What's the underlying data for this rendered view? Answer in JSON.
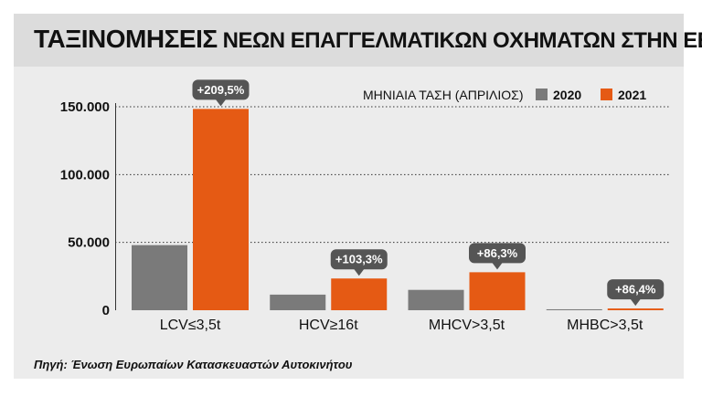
{
  "title": {
    "bold": "ΤΑΞΙΝΟΜΗΣΕΙΣ",
    "rest": "ΝΕΩΝ ΕΠΑΓΓΕΛΜΑΤΙΚΩΝ ΟΧΗΜΑΤΩΝ ΣΤΗΝ ΕΕ"
  },
  "legend": {
    "title": "ΜΗΝΙΑΙΑ ΤΑΣΗ (ΑΠΡΙΛΙΟΣ)",
    "items": [
      {
        "label": "2020",
        "color": "#7a7a7a"
      },
      {
        "label": "2021",
        "color": "#e55a14"
      }
    ]
  },
  "source": "Πηγή: Ένωση Ευρωπαίων Κατασκευαστών Αυτοκινήτου",
  "chart_data": {
    "type": "bar",
    "title": "ΤΑΞΙΝΟΜΗΣΕΙΣ ΝΕΩΝ ΕΠΑΓΓΕΛΜΑΤΙΚΩΝ ΟΧΗΜΑΤΩΝ ΣΤΗΝ ΕΕ",
    "categories": [
      "LCV≤3,5t",
      "HCV≥16t",
      "MHCV>3,5t",
      "MHBC>3,5t"
    ],
    "series": [
      {
        "name": "2020",
        "values": [
          48000,
          11500,
          15000,
          700
        ],
        "color": "#7a7a7a"
      },
      {
        "name": "2021",
        "values": [
          148400,
          23400,
          28000,
          1300
        ],
        "color": "#e55a14"
      }
    ],
    "change_labels": [
      "+209,5%",
      "+103,3%",
      "+86,3%",
      "+86,4%"
    ],
    "ylim": [
      0,
      150000
    ],
    "yticks": [
      0,
      50000,
      100000,
      150000
    ],
    "ytick_labels": [
      "0",
      "50.000",
      "100.000",
      "150.000"
    ],
    "grid": true,
    "legend_position": "top-right"
  }
}
